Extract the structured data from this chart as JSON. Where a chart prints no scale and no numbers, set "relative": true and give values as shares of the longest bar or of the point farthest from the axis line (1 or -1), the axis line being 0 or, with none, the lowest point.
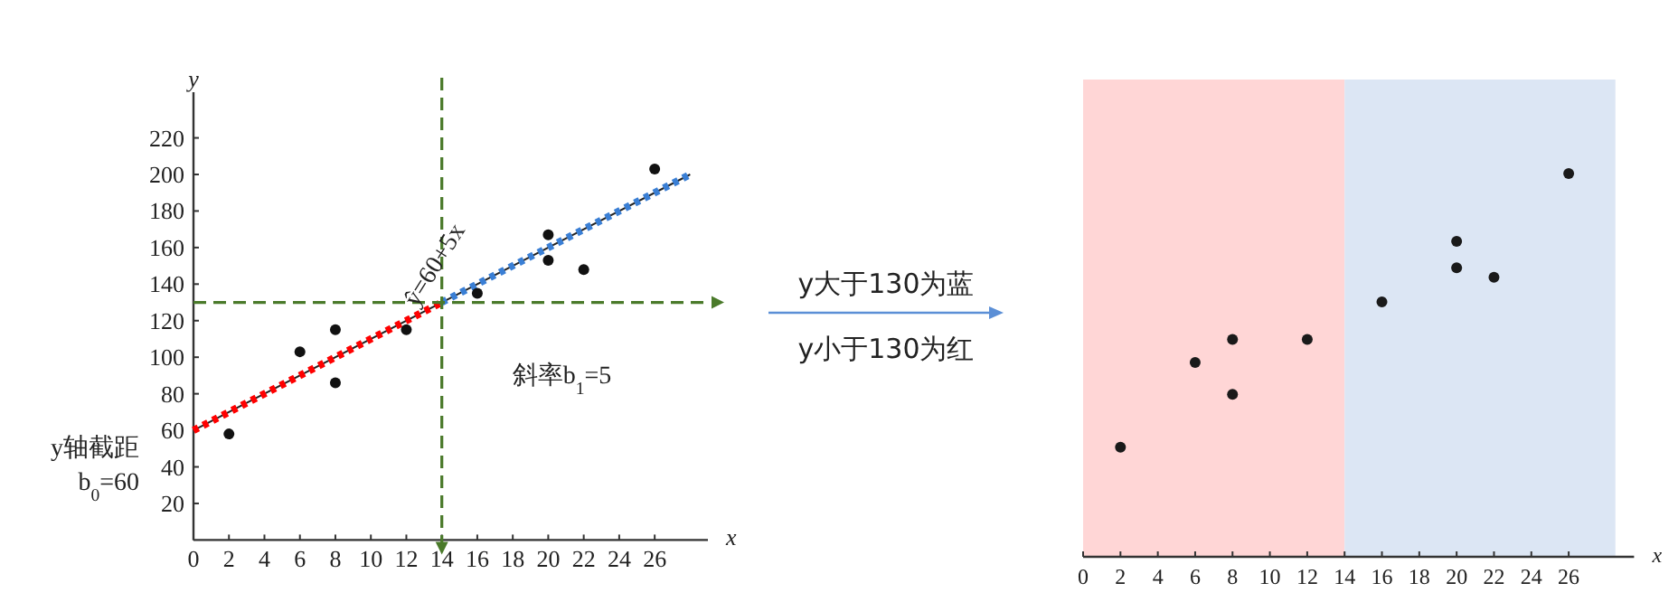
{
  "chart_data": [
    {
      "type": "scatter",
      "xlabel": "x",
      "ylabel": "y",
      "xlim": [
        0,
        29
      ],
      "ylim": [
        0,
        245
      ],
      "xticks": [
        0,
        2,
        4,
        6,
        8,
        10,
        12,
        14,
        16,
        18,
        20,
        22,
        24,
        26
      ],
      "yticks": [
        20,
        40,
        60,
        80,
        100,
        120,
        140,
        160,
        180,
        200,
        220
      ],
      "series": [
        {
          "type": "line",
          "color": "#222222",
          "line_style": "solid",
          "x": [
            0,
            28
          ],
          "values": [
            60,
            200
          ]
        },
        {
          "type": "line",
          "color": "#ff0000",
          "line_style": "dotted",
          "x": [
            0,
            14
          ],
          "values": [
            60,
            130
          ]
        },
        {
          "type": "line",
          "color": "#3a7fd5",
          "line_style": "dotted",
          "x": [
            14,
            28
          ],
          "values": [
            130,
            200
          ]
        },
        {
          "type": "scatter",
          "marker": "circle",
          "color": "#111111",
          "x": [
            2,
            6,
            8,
            8,
            12,
            16,
            20,
            20,
            22,
            26
          ],
          "values": [
            58,
            103,
            115,
            86,
            115,
            135,
            167,
            153,
            148,
            203
          ]
        }
      ],
      "ref_lines": [
        {
          "axis": "x",
          "value": 14,
          "color": "#4a7a2a",
          "line_style": "dashed"
        },
        {
          "axis": "y",
          "value": 130,
          "color": "#4a7a2a",
          "line_style": "dashed"
        }
      ],
      "annotations": [
        {
          "text": "ŷ=60+5x",
          "x": 13,
          "y": 125
        },
        {
          "text": "y轴截距\nb$_{0}$=60",
          "x": 0,
          "y": 60
        },
        "斜率b$_{1}$=5"
      ]
    },
    {
      "type": "other",
      "annotations": [
        "y大于130为蓝",
        "y小于130为红"
      ]
    },
    {
      "type": "scatter",
      "relative": true,
      "xlabel": "x",
      "xlim": [
        0,
        29.5
      ],
      "xticks": [
        0,
        2,
        4,
        6,
        8,
        10,
        12,
        14,
        16,
        18,
        20,
        22,
        24,
        26
      ],
      "tick_labels": "x",
      "marker": "circle",
      "color": "#1a1a1a",
      "x": [
        2,
        6,
        8,
        8,
        12,
        16,
        20,
        20,
        22,
        26
      ],
      "values": [
        0.286,
        0.507,
        0.567,
        0.424,
        0.567,
        0.665,
        0.823,
        0.754,
        0.729,
        1
      ],
      "bands": [
        {
          "axis": "x",
          "from": 0,
          "to": 14,
          "color": "#ffd6d6"
        },
        {
          "axis": "x",
          "from": 14,
          "to": 28.5,
          "color": "#dce6f4"
        }
      ]
    }
  ]
}
